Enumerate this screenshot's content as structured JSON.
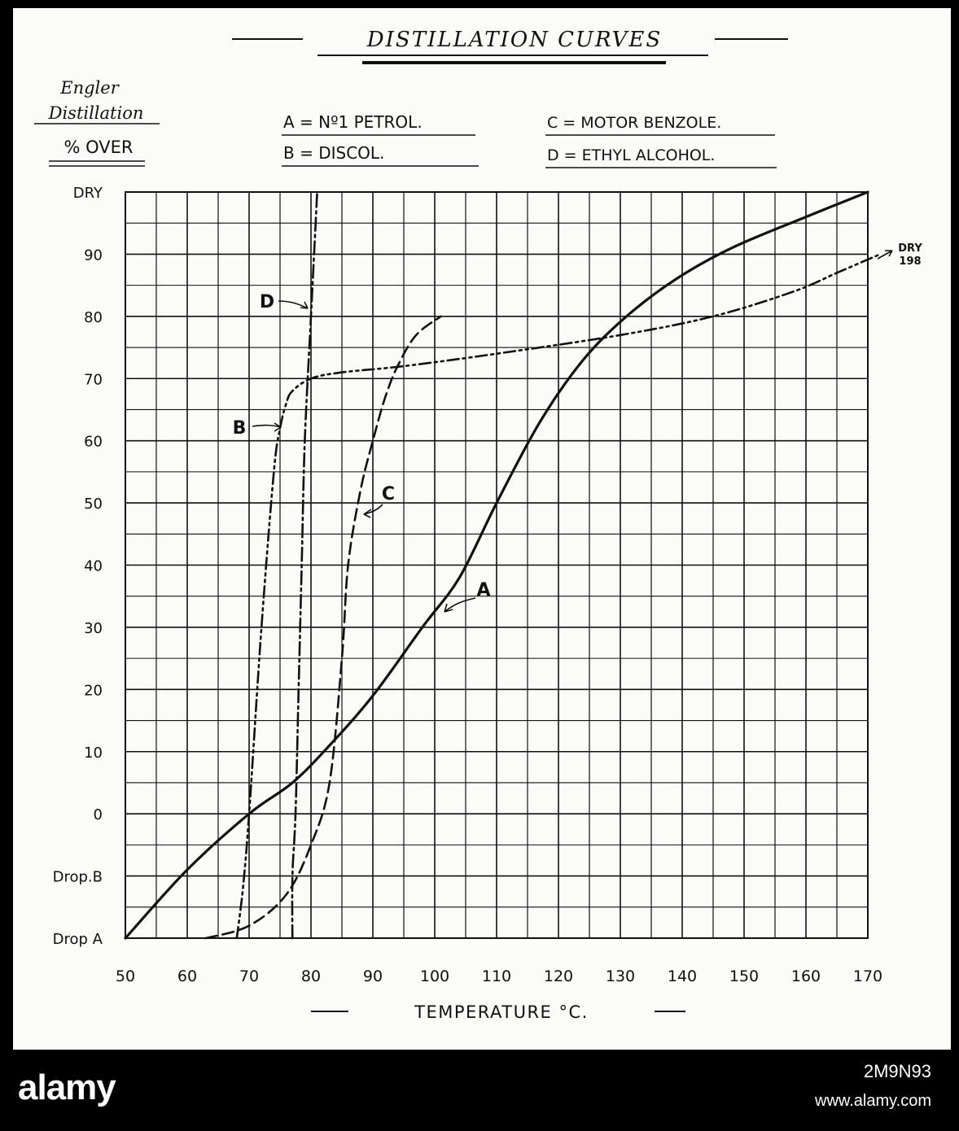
{
  "chart_data": {
    "type": "line",
    "title": "DISTILLATION CURVES",
    "ylabel_lines": [
      "Engler",
      "Distillation",
      "% OVER"
    ],
    "xlabel": "TEMPERATURE °C.",
    "x_ticks": [
      "50",
      "60",
      "70",
      "80",
      "90",
      "100",
      "110",
      "120",
      "130",
      "140",
      "150",
      "160",
      "170"
    ],
    "y_ticks": [
      "Drop A",
      "Drop.B",
      "0",
      "10",
      "20",
      "30",
      "40",
      "50",
      "60",
      "70",
      "80",
      "90",
      "DRY"
    ],
    "xlim": [
      50,
      170
    ],
    "ylim": [
      "Drop A",
      "DRY"
    ],
    "grid": true,
    "legend": [
      {
        "key": "A",
        "text": "A = Nº1 PETROL."
      },
      {
        "key": "B",
        "text": "B = DISCOL."
      },
      {
        "key": "C",
        "text": "C = MOTOR BENZOLE."
      },
      {
        "key": "D",
        "text": "D = ETHYL ALCOHOL."
      }
    ],
    "series": [
      {
        "name": "A",
        "style": "solid",
        "x": [
          50,
          60,
          70,
          77,
          83,
          90,
          98,
          104,
          110,
          117,
          124,
          131,
          139,
          148,
          160,
          170
        ],
        "y": [
          -20,
          -9,
          0,
          5,
          11,
          19,
          30,
          38,
          50,
          63,
          73,
          80,
          86,
          91,
          96,
          100
        ]
      },
      {
        "name": "B",
        "style": "dash-dot-dot",
        "x": [
          68,
          69,
          70,
          72,
          74,
          75,
          76,
          77,
          80,
          85,
          95,
          110,
          130,
          145,
          158,
          165,
          172
        ],
        "y": [
          -20,
          -12,
          0,
          30,
          55,
          62,
          66,
          68,
          70,
          71,
          72,
          74,
          77,
          80,
          84,
          87,
          90
        ]
      },
      {
        "name": "C",
        "style": "dashed",
        "x": [
          63,
          70,
          76,
          80,
          83,
          85,
          86,
          88,
          90,
          92,
          94,
          97,
          101
        ],
        "y": [
          -20,
          -18,
          -13,
          -5,
          5,
          25,
          40,
          52,
          60,
          67,
          72,
          77,
          80
        ]
      },
      {
        "name": "D",
        "style": "dash-dot",
        "x": [
          77,
          77,
          77.5,
          78,
          78.5,
          79,
          80,
          80.5,
          81
        ],
        "y": [
          -20,
          -10,
          0,
          20,
          40,
          60,
          80,
          90,
          100
        ]
      }
    ],
    "annotations": [
      {
        "text": "A",
        "points_to": "A"
      },
      {
        "text": "B",
        "points_to": "B"
      },
      {
        "text": "C",
        "points_to": "C"
      },
      {
        "text": "D",
        "points_to": "D"
      },
      {
        "text": "DRY",
        "points_to": "B end"
      },
      {
        "text": "198",
        "points_to": "B end"
      }
    ]
  },
  "watermark": {
    "logo": "alamy",
    "image_id": "2M9N93",
    "url": "www.alamy.com"
  }
}
